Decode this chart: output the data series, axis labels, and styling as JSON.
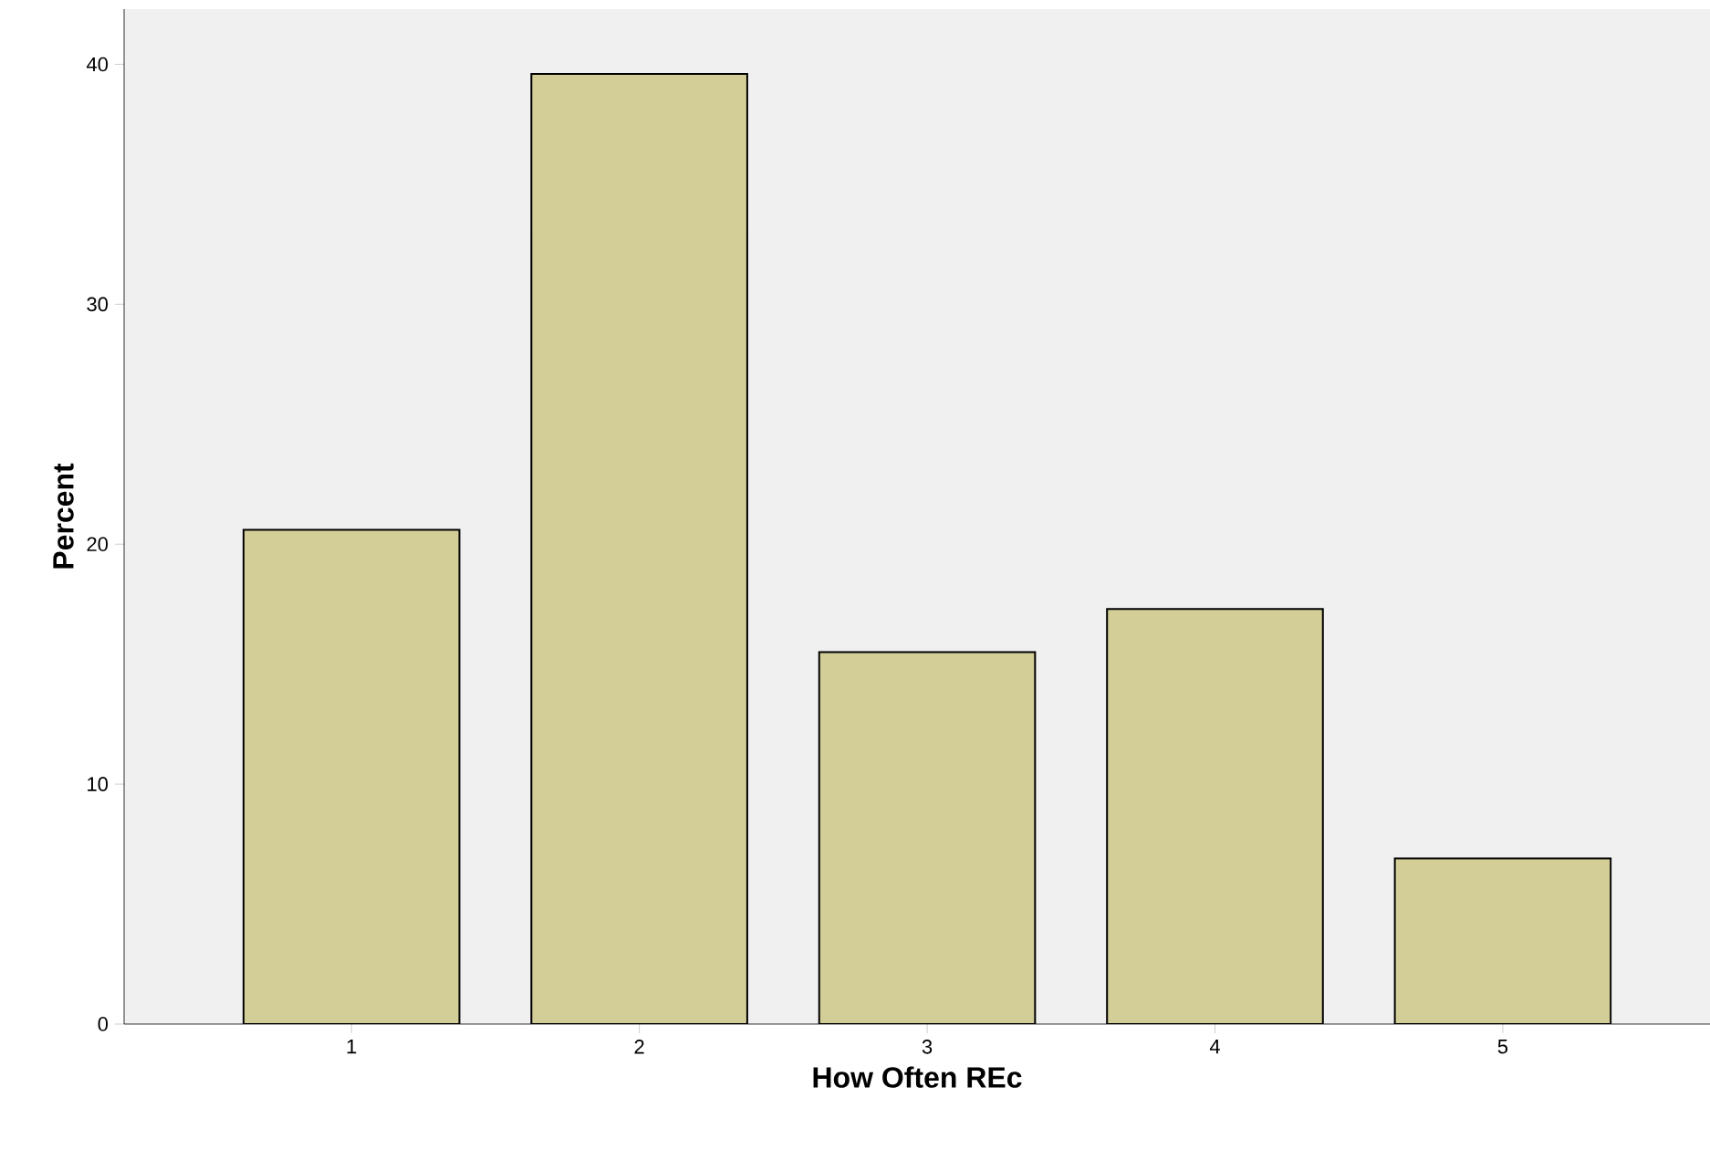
{
  "chart_data": {
    "type": "bar",
    "xlabel": "How Often REc",
    "ylabel": "Percent",
    "categories": [
      "1",
      "2",
      "3",
      "4",
      "5"
    ],
    "values": [
      20.6,
      39.6,
      15.5,
      17.3,
      6.9
    ],
    "color": "#d3ce97",
    "ylim": [
      0,
      42.3
    ],
    "yticks": [
      0,
      10,
      20,
      30,
      40
    ]
  }
}
